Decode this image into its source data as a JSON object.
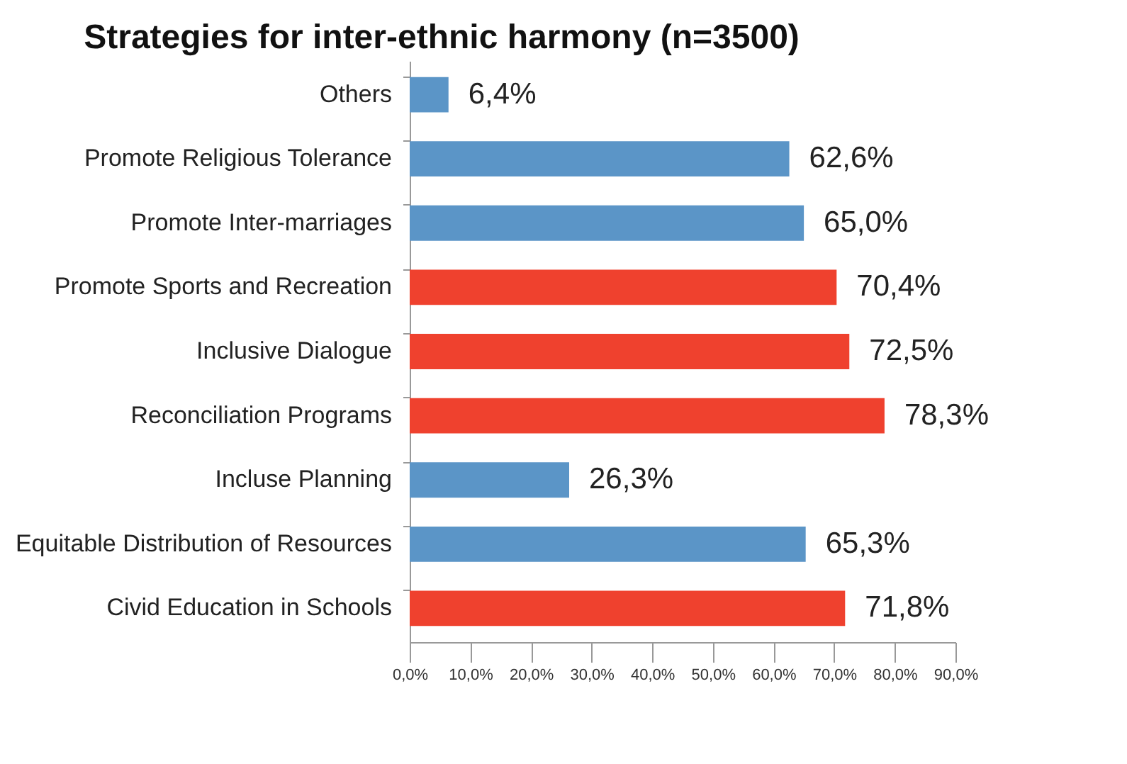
{
  "chart_data": {
    "type": "bar",
    "orientation": "horizontal",
    "title": "Strategies for inter-ethnic harmony (n=3500)",
    "categories": [
      "Others",
      "Promote Religious Tolerance",
      "Promote Inter-marriages",
      "Promote Sports and Recreation",
      "Inclusive Dialogue",
      "Reconciliation Programs",
      "Incluse Planning",
      "Equitable Distribution of Resources",
      "Civid Education in Schools"
    ],
    "values": [
      6.4,
      62.6,
      65.0,
      70.4,
      72.5,
      78.3,
      26.3,
      65.3,
      71.8
    ],
    "colors": [
      "#5b95c7",
      "#5b95c7",
      "#5b95c7",
      "#ef412e",
      "#ef412e",
      "#ef412e",
      "#5b95c7",
      "#5b95c7",
      "#ef412e"
    ],
    "value_labels": [
      "6,4%",
      "62,6%",
      "65,0%",
      "70,4%",
      "72,5%",
      "78,3%",
      "26,3%",
      "65,3%",
      "71,8%"
    ],
    "xlim": [
      0,
      90
    ],
    "xticks": [
      {
        "value": 0,
        "label": "0,0%"
      },
      {
        "value": 10,
        "label": "10,0%"
      },
      {
        "value": 20,
        "label": "20,0%"
      },
      {
        "value": 30,
        "label": "30,0%"
      },
      {
        "value": 40,
        "label": "40,0%"
      },
      {
        "value": 50,
        "label": "50,0%"
      },
      {
        "value": 60,
        "label": "60,0%"
      },
      {
        "value": 70,
        "label": "70,0%"
      },
      {
        "value": 80,
        "label": "80,0%"
      },
      {
        "value": 90,
        "label": "90,0%"
      }
    ],
    "grid": false
  }
}
